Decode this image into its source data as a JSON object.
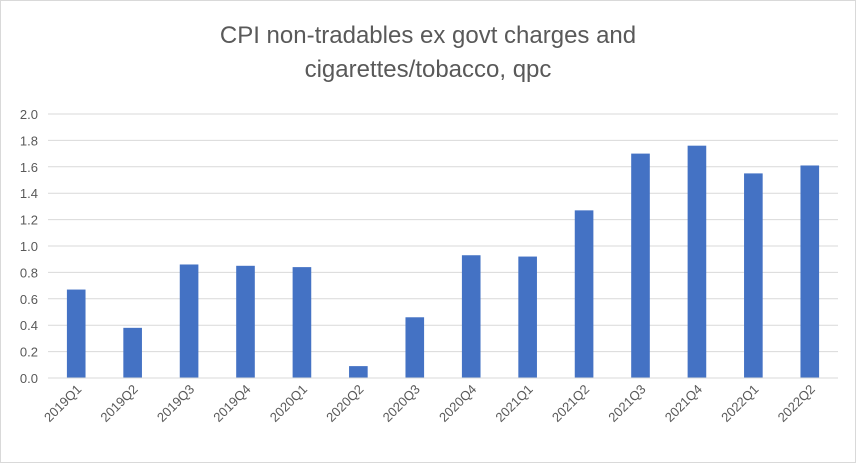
{
  "chart_data": {
    "type": "bar",
    "title_lines": [
      "CPI non-tradables ex govt charges and",
      "cigarettes/tobacco, qpc"
    ],
    "categories": [
      "2019Q1",
      "2019Q2",
      "2019Q3",
      "2019Q4",
      "2020Q1",
      "2020Q2",
      "2020Q3",
      "2020Q4",
      "2021Q1",
      "2021Q2",
      "2021Q3",
      "2021Q4",
      "2022Q1",
      "2022Q2"
    ],
    "values": [
      0.67,
      0.38,
      0.86,
      0.85,
      0.84,
      0.09,
      0.46,
      0.93,
      0.92,
      1.27,
      1.7,
      1.76,
      1.55,
      1.61
    ],
    "ylim": [
      0,
      2.0
    ],
    "yticks": [
      "0.0",
      "0.2",
      "0.4",
      "0.6",
      "0.8",
      "1.0",
      "1.2",
      "1.4",
      "1.6",
      "1.8",
      "2.0"
    ],
    "grid": true,
    "legend": "none",
    "bar_color": "#4472c4"
  }
}
